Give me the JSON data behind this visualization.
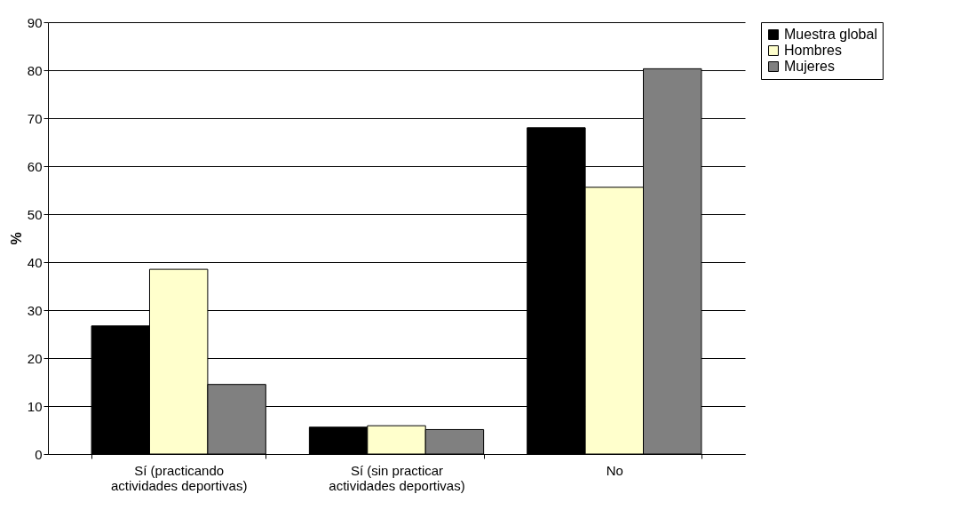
{
  "chart_data": {
    "type": "bar",
    "ylabel": "%",
    "categories": [
      "Sí (practicando actividades deportivas)",
      "Sí (sin practicar actividades deportivas)",
      "No"
    ],
    "series": [
      {
        "name": "Muestra global",
        "color": "#000000",
        "values": [
          26.7,
          5.6,
          68.0
        ]
      },
      {
        "name": "Hombres",
        "color": "#ffffcc",
        "values": [
          38.5,
          5.9,
          55.6
        ]
      },
      {
        "name": "Mujeres",
        "color": "#808080",
        "values": [
          14.5,
          5.1,
          80.3
        ]
      }
    ],
    "ylim": [
      0,
      90
    ],
    "yticks": [
      0,
      10,
      20,
      30,
      40,
      50,
      60,
      70,
      80,
      90
    ],
    "grid": "y",
    "legend": "right"
  }
}
